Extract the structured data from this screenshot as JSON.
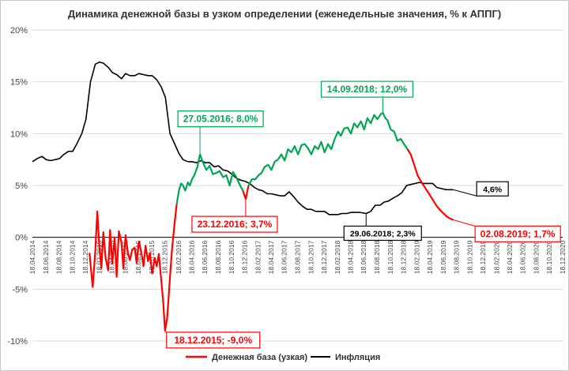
{
  "chart_data": {
    "type": "line",
    "title": "Динамика денежной базы в узком определении (еженедельные значения, % к АППГ)",
    "ylim": [
      -10,
      20
    ],
    "yticks": [
      -10,
      -5,
      0,
      5,
      10,
      15,
      20
    ],
    "ytick_labels": [
      "-10%",
      "-5%",
      "0%",
      "5%",
      "10%",
      "15%",
      "20%"
    ],
    "xlim": [
      "2014-04-18",
      "2020-12-18"
    ],
    "x_tick_labels": [
      "18.04.2014",
      "18.06.2014",
      "18.08.2014",
      "18.10.2014",
      "18.12.2014",
      "18.02.2015",
      "18.04.2015",
      "18.06.2015",
      "18.08.2015",
      "18.10.2015",
      "18.12.2015",
      "18.02.2016",
      "18.04.2016",
      "18.06.2016",
      "18.08.2016",
      "18.10.2016",
      "18.12.2016",
      "18.02.2017",
      "18.04.2017",
      "18.06.2017",
      "18.08.2017",
      "18.10.2017",
      "18.12.2017",
      "18.02.2018",
      "18.04.2018",
      "18.06.2018",
      "18.08.2018",
      "18.10.2018",
      "18.12.2018",
      "18.02.2019",
      "18.04.2019",
      "18.06.2019",
      "18.08.2019",
      "18.10.2019",
      "18.12.2019",
      "18.02.2020",
      "18.04.2020",
      "18.06.2020",
      "18.08.2020",
      "18.10.2020",
      "18.12.2020"
    ],
    "grid": true,
    "legend_position": "bottom",
    "series": [
      {
        "name": "Денежная база (узкая)",
        "color": "#ff0000",
        "color_rising": "#00a651",
        "x": [
          "2015-01-05",
          "2015-01-20",
          "2015-02-01",
          "2015-02-10",
          "2015-02-20",
          "2015-03-01",
          "2015-03-10",
          "2015-03-20",
          "2015-04-01",
          "2015-04-10",
          "2015-04-20",
          "2015-05-01",
          "2015-05-10",
          "2015-05-20",
          "2015-06-01",
          "2015-06-10",
          "2015-06-20",
          "2015-07-01",
          "2015-07-10",
          "2015-07-20",
          "2015-08-01",
          "2015-08-10",
          "2015-08-20",
          "2015-09-01",
          "2015-09-10",
          "2015-09-20",
          "2015-10-01",
          "2015-10-10",
          "2015-10-20",
          "2015-11-01",
          "2015-11-10",
          "2015-11-20",
          "2015-12-01",
          "2015-12-10",
          "2015-12-18",
          "2015-12-28",
          "2016-01-08",
          "2016-01-18",
          "2016-02-01",
          "2016-02-10",
          "2016-02-20",
          "2016-03-01",
          "2016-03-10",
          "2016-03-20",
          "2016-04-01",
          "2016-04-10",
          "2016-04-20",
          "2016-05-01",
          "2016-05-15",
          "2016-05-27",
          "2016-06-10",
          "2016-06-25",
          "2016-07-10",
          "2016-07-25",
          "2016-08-10",
          "2016-08-25",
          "2016-09-10",
          "2016-09-25",
          "2016-10-10",
          "2016-10-25",
          "2016-11-10",
          "2016-11-25",
          "2016-12-10",
          "2016-12-23",
          "2017-01-05",
          "2017-01-20",
          "2017-02-05",
          "2017-02-20",
          "2017-03-05",
          "2017-03-20",
          "2017-04-05",
          "2017-04-20",
          "2017-05-05",
          "2017-05-20",
          "2017-06-05",
          "2017-06-20",
          "2017-07-05",
          "2017-07-20",
          "2017-08-05",
          "2017-08-20",
          "2017-09-05",
          "2017-09-20",
          "2017-10-05",
          "2017-10-20",
          "2017-11-05",
          "2017-11-20",
          "2017-12-05",
          "2017-12-20",
          "2018-01-05",
          "2018-01-20",
          "2018-02-05",
          "2018-02-20",
          "2018-03-05",
          "2018-03-20",
          "2018-04-05",
          "2018-04-20",
          "2018-05-05",
          "2018-05-20",
          "2018-06-05",
          "2018-06-20",
          "2018-07-05",
          "2018-07-20",
          "2018-08-05",
          "2018-08-20",
          "2018-09-05",
          "2018-09-14",
          "2018-09-25",
          "2018-10-05",
          "2018-10-20",
          "2018-11-05",
          "2018-11-20",
          "2018-12-05",
          "2018-12-20",
          "2019-01-05",
          "2019-01-20",
          "2019-02-05",
          "2019-02-20",
          "2019-03-05",
          "2019-03-20",
          "2019-04-05",
          "2019-04-20",
          "2019-05-05",
          "2019-05-20",
          "2019-06-05",
          "2019-06-20",
          "2019-07-05",
          "2019-07-20",
          "2019-08-02"
        ],
        "values": [
          -1.5,
          -4.8,
          -1.3,
          2.5,
          -1.0,
          -3.0,
          0.5,
          -2.0,
          -3.2,
          0.7,
          -2.5,
          0.0,
          -3.8,
          0.6,
          -0.5,
          -3.0,
          0.2,
          -1.5,
          -2.2,
          -1.2,
          -1.0,
          -2.5,
          -0.4,
          -1.5,
          -2.8,
          -0.8,
          -2.3,
          -1.5,
          -3.5,
          -2.0,
          -2.8,
          -1.6,
          -4.2,
          -6.2,
          -9.0,
          -7.8,
          -4.5,
          -1.5,
          1.5,
          3.2,
          4.5,
          5.2,
          5.0,
          4.5,
          5.3,
          5.0,
          5.6,
          6.0,
          6.8,
          8.0,
          7.2,
          6.5,
          6.9,
          6.1,
          6.2,
          6.4,
          5.8,
          6.0,
          5.0,
          6.3,
          5.8,
          5.1,
          4.5,
          3.7,
          5.0,
          5.6,
          5.6,
          6.0,
          6.2,
          6.8,
          7.0,
          6.5,
          7.3,
          7.5,
          8.0,
          7.4,
          8.5,
          8.2,
          8.8,
          8.0,
          8.9,
          9.0,
          8.6,
          8.0,
          8.8,
          8.5,
          9.2,
          8.2,
          9.0,
          8.5,
          9.5,
          10.2,
          9.8,
          10.5,
          10.6,
          10.0,
          11.0,
          10.6,
          11.2,
          10.4,
          11.5,
          11.0,
          11.8,
          11.4,
          11.9,
          12.0,
          11.5,
          11.3,
          10.4,
          10.2,
          9.3,
          9.5,
          9.0,
          8.5,
          8.0,
          7.0,
          6.0,
          5.5,
          5.0,
          4.5,
          4.0,
          3.5,
          3.0,
          2.6,
          2.3,
          2.0,
          1.8,
          1.7
        ]
      },
      {
        "name": "Инфляция",
        "color": "#000000",
        "x": [
          "2014-04-18",
          "2014-05-10",
          "2014-06-01",
          "2014-06-20",
          "2014-07-10",
          "2014-08-01",
          "2014-08-20",
          "2014-09-10",
          "2014-10-01",
          "2014-10-20",
          "2014-11-10",
          "2014-12-01",
          "2014-12-20",
          "2015-01-10",
          "2015-02-01",
          "2015-02-20",
          "2015-03-10",
          "2015-04-01",
          "2015-04-20",
          "2015-05-10",
          "2015-06-01",
          "2015-06-20",
          "2015-07-10",
          "2015-08-01",
          "2015-08-20",
          "2015-09-10",
          "2015-10-01",
          "2015-10-20",
          "2015-11-10",
          "2015-12-01",
          "2015-12-20",
          "2016-01-10",
          "2016-02-01",
          "2016-02-20",
          "2016-03-10",
          "2016-04-01",
          "2016-04-20",
          "2016-05-10",
          "2016-06-01",
          "2016-06-20",
          "2016-07-10",
          "2016-08-01",
          "2016-08-20",
          "2016-09-10",
          "2016-10-01",
          "2016-10-20",
          "2016-11-10",
          "2016-12-01",
          "2016-12-20",
          "2017-01-10",
          "2017-02-01",
          "2017-02-20",
          "2017-03-10",
          "2017-04-01",
          "2017-04-20",
          "2017-05-10",
          "2017-06-01",
          "2017-06-20",
          "2017-07-10",
          "2017-08-01",
          "2017-08-20",
          "2017-09-10",
          "2017-10-01",
          "2017-10-20",
          "2017-11-10",
          "2017-12-01",
          "2017-12-20",
          "2018-01-10",
          "2018-02-01",
          "2018-02-20",
          "2018-03-10",
          "2018-04-01",
          "2018-04-20",
          "2018-05-10",
          "2018-06-01",
          "2018-06-29",
          "2018-07-20",
          "2018-08-10",
          "2018-09-01",
          "2018-09-20",
          "2018-10-10",
          "2018-11-01",
          "2018-11-20",
          "2018-12-10",
          "2019-01-01",
          "2019-01-20",
          "2019-02-10",
          "2019-03-01",
          "2019-03-20",
          "2019-04-10",
          "2019-05-01",
          "2019-05-20",
          "2019-06-10",
          "2019-07-01",
          "2019-07-20",
          "2019-08-02"
        ],
        "values": [
          7.3,
          7.6,
          7.8,
          7.5,
          7.4,
          7.5,
          7.6,
          8.0,
          8.3,
          8.3,
          9.1,
          10.0,
          11.4,
          15.0,
          16.7,
          16.9,
          16.8,
          16.4,
          15.9,
          15.7,
          15.3,
          15.8,
          15.6,
          15.6,
          15.8,
          15.7,
          15.6,
          15.6,
          15.2,
          14.5,
          13.5,
          10.0,
          9.0,
          8.1,
          7.5,
          7.3,
          7.3,
          7.2,
          7.4,
          7.2,
          7.2,
          6.8,
          6.9,
          6.5,
          6.4,
          6.1,
          5.7,
          5.5,
          5.4,
          5.2,
          4.8,
          4.6,
          4.5,
          4.2,
          4.2,
          4.1,
          4.0,
          4.0,
          4.4,
          3.9,
          3.4,
          3.0,
          2.7,
          2.7,
          2.5,
          2.5,
          2.5,
          2.2,
          2.2,
          2.2,
          2.3,
          2.3,
          2.4,
          2.4,
          2.4,
          2.3,
          2.5,
          3.1,
          3.1,
          3.4,
          3.5,
          3.8,
          4.0,
          4.3,
          5.0,
          5.1,
          5.2,
          5.3,
          5.2,
          5.2,
          5.2,
          4.8,
          4.7,
          4.6,
          4.6,
          4.6
        ]
      }
    ],
    "annotations": [
      {
        "text": "27.05.2016; 8,0%",
        "color": "#00a651",
        "x": "2016-05-27",
        "y": 8.0
      },
      {
        "text": "14.09.2018; 12,0%",
        "color": "#00a651",
        "x": "2018-09-14",
        "y": 12.0
      },
      {
        "text": "23.12.2016; 3,7%",
        "color": "#ff0000",
        "x": "2016-12-23",
        "y": 3.7
      },
      {
        "text": "18.12.2015; -9,0%",
        "color": "#ff0000",
        "x": "2015-12-18",
        "y": -9.0
      },
      {
        "text": "02.08.2019; 1,7%",
        "color": "#ff0000",
        "x": "2019-08-02",
        "y": 1.7
      },
      {
        "text": "29.06.2018; 2,3%",
        "color": "#000000",
        "x": "2018-06-29",
        "y": 2.3
      },
      {
        "text": "4,6%",
        "color": "#000000",
        "x": "2019-08-02",
        "y": 4.6
      }
    ]
  }
}
